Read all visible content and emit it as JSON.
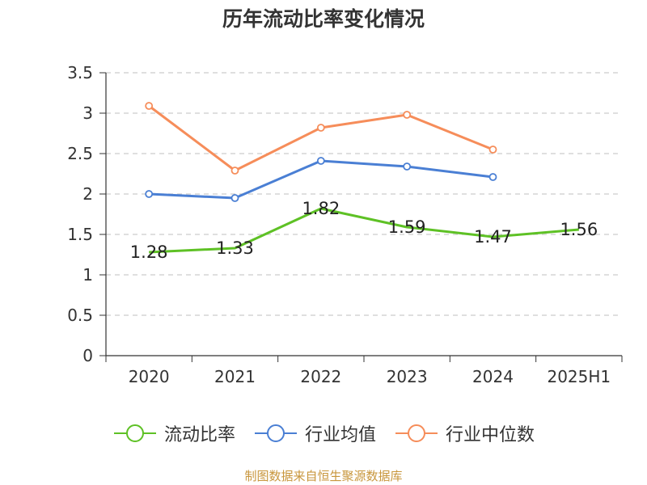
{
  "colors": {
    "current_ratio": "#5ec125",
    "industry_avg": "#4a7fd4",
    "industry_median": "#f68d5a",
    "grid": "#cccccc",
    "axis": "#333333",
    "source": "#c8963c"
  },
  "source_note": "制图数据来自恒生聚源数据库",
  "chart_data": {
    "type": "line",
    "title": "历年流动比率变化情况",
    "categories": [
      "2020",
      "2021",
      "2022",
      "2023",
      "2024",
      "2025H1"
    ],
    "ylim": [
      0,
      3.5
    ],
    "yticks": [
      "0",
      "0.5",
      "1",
      "1.5",
      "2",
      "2.5",
      "3",
      "3.5"
    ],
    "grid": "horizontal-dashed",
    "legend_position": "bottom",
    "series": [
      {
        "name": "流动比率",
        "key": "current_ratio",
        "values": [
          1.28,
          1.33,
          1.82,
          1.59,
          1.47,
          1.56
        ],
        "labels": [
          "1.28",
          "1.33",
          "1.82",
          "1.59",
          "1.47",
          "1.56"
        ],
        "markers": "none"
      },
      {
        "name": "行业均值",
        "key": "industry_avg",
        "values": [
          2.0,
          1.95,
          2.41,
          2.34,
          2.21,
          null
        ],
        "markers": "circle"
      },
      {
        "name": "行业中位数",
        "key": "industry_median",
        "values": [
          3.09,
          2.29,
          2.82,
          2.98,
          2.55,
          null
        ],
        "markers": "circle"
      }
    ]
  }
}
